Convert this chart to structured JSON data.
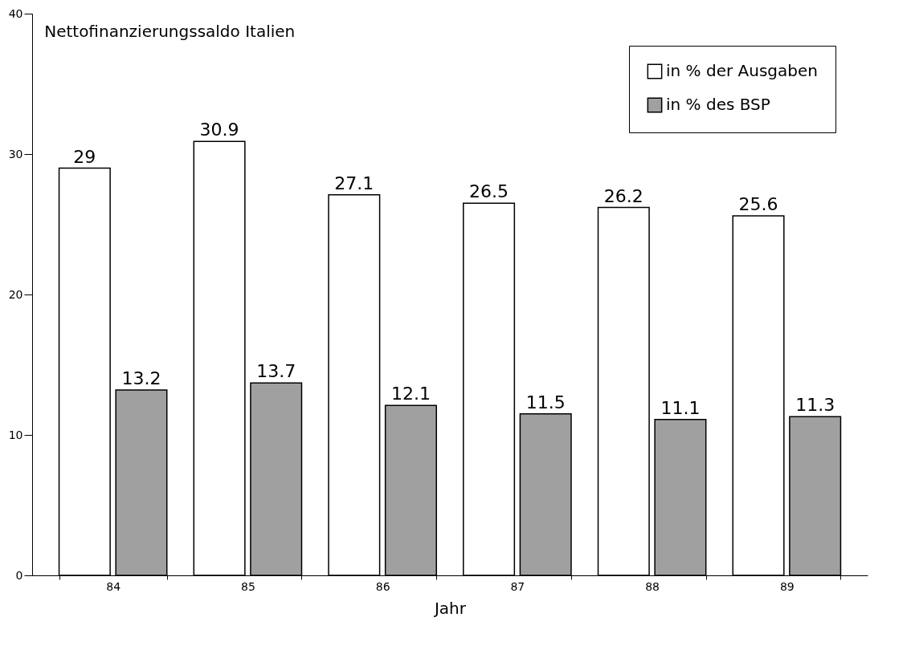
{
  "chart_data": {
    "type": "bar",
    "title": "Nettofinanzierungssaldo Italien",
    "xlabel": "Jahr",
    "categories": [
      "84",
      "85",
      "86",
      "87",
      "88",
      "89"
    ],
    "series": [
      {
        "name": "in % der Ausgaben",
        "color": "#ffffff",
        "values": [
          29,
          30.9,
          27.1,
          26.5,
          26.2,
          25.6
        ]
      },
      {
        "name": "in % des BSP",
        "color": "#a0a0a0",
        "values": [
          13.2,
          13.7,
          12.1,
          11.5,
          11.1,
          11.3
        ]
      }
    ],
    "ylim": [
      0,
      40
    ],
    "yticks": [
      0,
      10,
      20,
      30,
      40
    ],
    "grid": false,
    "legend": "top right",
    "data_labels": true
  }
}
